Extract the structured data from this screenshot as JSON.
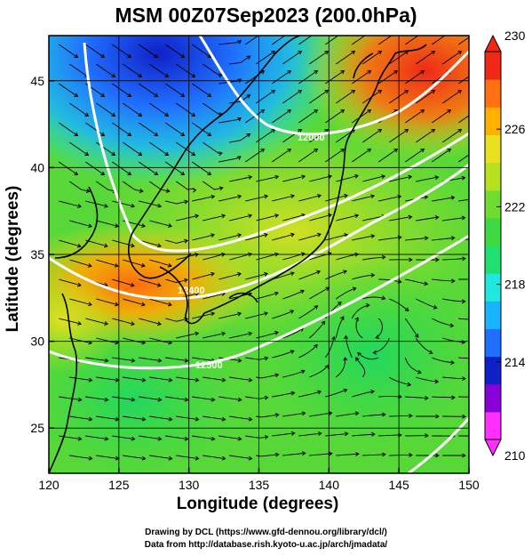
{
  "chart_data": {
    "type": "heatmap",
    "title": "MSM 00Z07Sep2023 (200.0hPa)",
    "xlabel": "Longitude (degrees)",
    "ylabel": "Latitude  (degrees)",
    "xlim": [
      120,
      150
    ],
    "ylim": [
      22.4,
      47.6
    ],
    "x_ticks": [
      120,
      125,
      130,
      135,
      140,
      145,
      150
    ],
    "y_ticks": [
      25,
      30,
      35,
      40,
      45
    ],
    "colorbar": {
      "min": 210,
      "max": 230,
      "ticks": [
        210,
        214,
        218,
        222,
        226,
        230
      ],
      "colors": [
        "#ff30ff",
        "#8a00d8",
        "#1020c8",
        "#2070ff",
        "#18b4ff",
        "#20e8e0",
        "#20e070",
        "#40d840",
        "#70dc30",
        "#b8e020",
        "#e8e020",
        "#ffb000",
        "#ff7010",
        "#f02818"
      ]
    },
    "field": "temperature (K) with streamlines and geopotential height contours",
    "contours": [
      {
        "label": "12000"
      },
      {
        "label": "12400"
      },
      {
        "label": "12500"
      }
    ],
    "grid": true
  },
  "credits": {
    "line1": "Drawing by DCL (https://www.gfd-dennou.org/library/dcl/)",
    "line2": "Data from http://database.rish.kyoto-u.ac.jp/arch/jmadata/"
  }
}
